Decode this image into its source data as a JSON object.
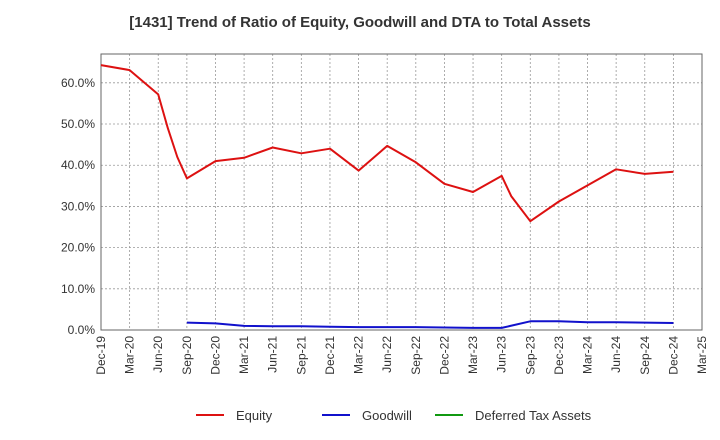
{
  "chart_data": {
    "type": "line",
    "title": "[1431]  Trend of Ratio of Equity, Goodwill and DTA to Total Assets",
    "xlabel": "",
    "ylabel": "",
    "x_ticks": [
      "Dec-19",
      "Mar-20",
      "Jun-20",
      "Sep-20",
      "Dec-20",
      "Mar-21",
      "Jun-21",
      "Sep-21",
      "Dec-21",
      "Mar-22",
      "Jun-22",
      "Sep-22",
      "Dec-22",
      "Mar-23",
      "Jun-23",
      "Sep-23",
      "Dec-23",
      "Mar-24",
      "Jun-24",
      "Sep-24",
      "Dec-24",
      "Mar-25"
    ],
    "y_ticks": [
      "0.0%",
      "10.0%",
      "20.0%",
      "30.0%",
      "40.0%",
      "50.0%",
      "60.0%"
    ],
    "ylim": [
      0,
      67
    ],
    "grid": true,
    "legend_position": "bottom",
    "series": [
      {
        "name": "Equity",
        "color": "#dd1111",
        "points": [
          [
            "Dec-19",
            64.3
          ],
          [
            "Mar-20",
            63.1
          ],
          [
            "Jun-20",
            57.2
          ],
          [
            "Jul-20",
            49.0
          ],
          [
            "Aug-20",
            42.0
          ],
          [
            "Sep-20",
            36.8
          ],
          [
            "Dec-20",
            41.0
          ],
          [
            "Mar-21",
            41.8
          ],
          [
            "Jun-21",
            44.3
          ],
          [
            "Sep-21",
            42.9
          ],
          [
            "Dec-21",
            44.0
          ],
          [
            "Mar-22",
            38.7
          ],
          [
            "Jun-22",
            44.7
          ],
          [
            "Sep-22",
            40.7
          ],
          [
            "Dec-22",
            35.5
          ],
          [
            "Mar-23",
            33.5
          ],
          [
            "Jun-23",
            37.4
          ],
          [
            "Jul-23",
            32.5
          ],
          [
            "Sep-23",
            26.4
          ],
          [
            "Dec-23",
            31.2
          ],
          [
            "Mar-24",
            35.1
          ],
          [
            "Jun-24",
            39.0
          ],
          [
            "Sep-24",
            37.9
          ],
          [
            "Dec-24",
            38.4
          ]
        ]
      },
      {
        "name": "Goodwill",
        "color": "#1111cc",
        "points": [
          [
            "Sep-20",
            1.8
          ],
          [
            "Dec-20",
            1.6
          ],
          [
            "Mar-21",
            1.0
          ],
          [
            "Jun-21",
            0.9
          ],
          [
            "Sep-21",
            0.9
          ],
          [
            "Dec-21",
            0.8
          ],
          [
            "Mar-22",
            0.7
          ],
          [
            "Jun-22",
            0.7
          ],
          [
            "Sep-22",
            0.7
          ],
          [
            "Dec-22",
            0.6
          ],
          [
            "Mar-23",
            0.5
          ],
          [
            "Jun-23",
            0.5
          ],
          [
            "Sep-23",
            2.1
          ],
          [
            "Dec-23",
            2.1
          ],
          [
            "Mar-24",
            1.9
          ],
          [
            "Jun-24",
            1.9
          ],
          [
            "Sep-24",
            1.8
          ],
          [
            "Dec-24",
            1.7
          ]
        ]
      },
      {
        "name": "Deferred Tax Assets",
        "color": "#119911",
        "points": []
      }
    ]
  }
}
